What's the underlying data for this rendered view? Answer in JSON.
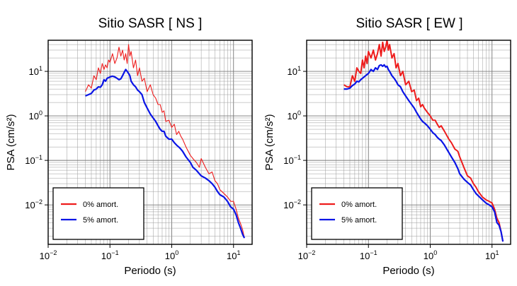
{
  "chart_data": [
    {
      "type": "line",
      "title": "Sitio SASR [ NS ]",
      "xlabel": "Periodo (s)",
      "ylabel": "PSA (cm/s²)",
      "x_scale": "log",
      "y_scale": "log",
      "xlim": [
        0.01,
        20
      ],
      "ylim": [
        0.0013,
        50
      ],
      "x_ticks": [
        {
          "value": 0.01,
          "base": "10",
          "exp": "−2"
        },
        {
          "value": 0.1,
          "base": "10",
          "exp": "−1"
        },
        {
          "value": 1,
          "base": "10",
          "exp": "0"
        },
        {
          "value": 10,
          "base": "10",
          "exp": "1"
        }
      ],
      "y_ticks": [
        {
          "value": 0.01,
          "base": "10",
          "exp": "−2"
        },
        {
          "value": 0.1,
          "base": "10",
          "exp": "−1"
        },
        {
          "value": 1,
          "base": "10",
          "exp": "0"
        },
        {
          "value": 10,
          "base": "10",
          "exp": "1"
        }
      ],
      "grid": true,
      "legend": "bottom-left",
      "series": [
        {
          "name": "0% amort.",
          "color": "#ee1c1c",
          "x": [
            0.04,
            0.045,
            0.05,
            0.055,
            0.06,
            0.065,
            0.07,
            0.075,
            0.08,
            0.085,
            0.09,
            0.095,
            0.1,
            0.11,
            0.12,
            0.13,
            0.14,
            0.15,
            0.16,
            0.17,
            0.18,
            0.19,
            0.2,
            0.21,
            0.22,
            0.24,
            0.26,
            0.28,
            0.3,
            0.33,
            0.36,
            0.4,
            0.45,
            0.5,
            0.55,
            0.6,
            0.65,
            0.7,
            0.75,
            0.8,
            0.9,
            1.0,
            1.1,
            1.2,
            1.3,
            1.4,
            1.5,
            1.7,
            2.0,
            2.2,
            2.5,
            2.8,
            3.0,
            3.5,
            4.0,
            4.5,
            5.0,
            5.5,
            6.0,
            7.0,
            8.0,
            9.0,
            10.0,
            11.0,
            12.0,
            13.0,
            14.0,
            15.0
          ],
          "y": [
            3.5,
            5.0,
            4.2,
            8.0,
            6.5,
            12.0,
            9.0,
            15.0,
            11.0,
            14.0,
            12.0,
            18.0,
            16.0,
            25.0,
            15.0,
            20.0,
            35.0,
            22.0,
            30.0,
            18.0,
            25.0,
            15.0,
            40.0,
            22.0,
            28.0,
            12.0,
            18.0,
            8.0,
            12.0,
            6.0,
            7.0,
            3.5,
            5.0,
            3.0,
            2.5,
            1.8,
            1.8,
            1.2,
            1.3,
            0.75,
            0.8,
            0.55,
            0.65,
            0.38,
            0.45,
            0.35,
            0.3,
            0.2,
            0.13,
            0.11,
            0.09,
            0.07,
            0.11,
            0.07,
            0.05,
            0.055,
            0.035,
            0.03,
            0.022,
            0.018,
            0.015,
            0.012,
            0.012,
            0.008,
            0.005,
            0.0038,
            0.0028,
            0.0018
          ]
        },
        {
          "name": "5% amort.",
          "color": "#0a14e6",
          "x": [
            0.04,
            0.045,
            0.05,
            0.055,
            0.06,
            0.065,
            0.07,
            0.075,
            0.08,
            0.085,
            0.09,
            0.095,
            0.1,
            0.11,
            0.12,
            0.13,
            0.14,
            0.15,
            0.16,
            0.17,
            0.18,
            0.19,
            0.2,
            0.21,
            0.22,
            0.24,
            0.26,
            0.28,
            0.3,
            0.33,
            0.36,
            0.4,
            0.45,
            0.5,
            0.55,
            0.6,
            0.65,
            0.7,
            0.75,
            0.8,
            0.9,
            1.0,
            1.1,
            1.2,
            1.3,
            1.4,
            1.5,
            1.7,
            2.0,
            2.2,
            2.5,
            2.8,
            3.0,
            3.5,
            4.0,
            4.5,
            5.0,
            5.5,
            6.0,
            7.0,
            8.0,
            9.0,
            10.0,
            11.0,
            12.0,
            13.0,
            14.0,
            15.0
          ],
          "y": [
            2.8,
            3.0,
            3.2,
            3.8,
            4.0,
            4.5,
            4.4,
            5.0,
            6.5,
            6.0,
            7.0,
            7.2,
            7.5,
            7.8,
            7.5,
            7.0,
            6.5,
            6.8,
            8.0,
            9.5,
            11.0,
            10.0,
            9.0,
            8.0,
            6.0,
            5.0,
            4.5,
            3.8,
            3.5,
            3.0,
            2.0,
            1.5,
            1.1,
            0.9,
            0.75,
            0.6,
            0.5,
            0.45,
            0.45,
            0.35,
            0.3,
            0.3,
            0.25,
            0.22,
            0.2,
            0.18,
            0.16,
            0.12,
            0.09,
            0.07,
            0.06,
            0.05,
            0.045,
            0.04,
            0.035,
            0.03,
            0.025,
            0.02,
            0.017,
            0.015,
            0.012,
            0.009,
            0.008,
            0.006,
            0.004,
            0.003,
            0.0022,
            0.0018
          ]
        }
      ]
    },
    {
      "type": "line",
      "title": "Sitio SASR [ EW ]",
      "xlabel": "Periodo (s)",
      "ylabel": "PSA (cm/s²)",
      "x_scale": "log",
      "y_scale": "log",
      "xlim": [
        0.01,
        20
      ],
      "ylim": [
        0.0013,
        50
      ],
      "x_ticks": [
        {
          "value": 0.01,
          "base": "10",
          "exp": "−2"
        },
        {
          "value": 0.1,
          "base": "10",
          "exp": "−1"
        },
        {
          "value": 1,
          "base": "10",
          "exp": "0"
        },
        {
          "value": 10,
          "base": "10",
          "exp": "1"
        }
      ],
      "y_ticks": [
        {
          "value": 0.01,
          "base": "10",
          "exp": "−2"
        },
        {
          "value": 0.1,
          "base": "10",
          "exp": "−1"
        },
        {
          "value": 1,
          "base": "10",
          "exp": "0"
        },
        {
          "value": 10,
          "base": "10",
          "exp": "1"
        }
      ],
      "grid": true,
      "legend": "bottom-left",
      "series": [
        {
          "name": "0% amort.",
          "color": "#ee1c1c",
          "x": [
            0.04,
            0.045,
            0.05,
            0.055,
            0.06,
            0.065,
            0.07,
            0.075,
            0.08,
            0.085,
            0.09,
            0.095,
            0.1,
            0.11,
            0.12,
            0.13,
            0.14,
            0.15,
            0.16,
            0.17,
            0.18,
            0.19,
            0.2,
            0.21,
            0.22,
            0.24,
            0.26,
            0.28,
            0.3,
            0.33,
            0.36,
            0.4,
            0.45,
            0.5,
            0.55,
            0.6,
            0.65,
            0.7,
            0.75,
            0.8,
            0.9,
            1.0,
            1.1,
            1.2,
            1.3,
            1.4,
            1.5,
            1.7,
            2.0,
            2.2,
            2.5,
            2.8,
            3.0,
            3.5,
            4.0,
            4.5,
            5.0,
            5.5,
            6.0,
            7.0,
            8.0,
            9.0,
            10.0,
            11.0,
            12.0,
            13.0,
            14.0,
            15.0
          ],
          "y": [
            5.0,
            4.5,
            4.5,
            8.0,
            6.0,
            12.0,
            10.0,
            9.0,
            18.0,
            12.0,
            22.0,
            15.0,
            28.0,
            20.0,
            30.0,
            18.0,
            25.0,
            40.0,
            22.0,
            45.0,
            28.0,
            35.0,
            50.0,
            30.0,
            40.0,
            20.0,
            25.0,
            12.0,
            15.0,
            8.0,
            10.0,
            5.0,
            6.0,
            3.5,
            3.8,
            2.2,
            2.5,
            1.6,
            1.8,
            1.5,
            1.2,
            1.0,
            0.8,
            0.8,
            0.65,
            0.55,
            0.6,
            0.45,
            0.3,
            0.25,
            0.18,
            0.16,
            0.12,
            0.07,
            0.045,
            0.04,
            0.03,
            0.025,
            0.02,
            0.015,
            0.013,
            0.012,
            0.011,
            0.008,
            0.005,
            0.004,
            0.0025,
            0.0015
          ]
        },
        {
          "name": "5% amort.",
          "color": "#0a14e6",
          "x": [
            0.04,
            0.045,
            0.05,
            0.055,
            0.06,
            0.065,
            0.07,
            0.075,
            0.08,
            0.085,
            0.09,
            0.095,
            0.1,
            0.11,
            0.12,
            0.13,
            0.14,
            0.15,
            0.16,
            0.17,
            0.18,
            0.19,
            0.2,
            0.21,
            0.22,
            0.24,
            0.26,
            0.28,
            0.3,
            0.33,
            0.36,
            0.4,
            0.45,
            0.5,
            0.55,
            0.6,
            0.65,
            0.7,
            0.75,
            0.8,
            0.9,
            1.0,
            1.1,
            1.2,
            1.3,
            1.4,
            1.5,
            1.7,
            2.0,
            2.2,
            2.5,
            2.8,
            3.0,
            3.5,
            4.0,
            4.5,
            5.0,
            5.5,
            6.0,
            7.0,
            8.0,
            9.0,
            10.0,
            11.0,
            12.0,
            13.0,
            14.0,
            15.0
          ],
          "y": [
            4.0,
            4.0,
            4.2,
            4.8,
            5.2,
            6.0,
            5.8,
            6.5,
            7.0,
            7.5,
            8.0,
            8.5,
            9.0,
            11.0,
            10.0,
            12.0,
            11.0,
            13.5,
            14.0,
            13.0,
            14.0,
            12.5,
            13.0,
            11.0,
            10.0,
            8.0,
            7.0,
            6.0,
            5.0,
            4.5,
            3.5,
            2.8,
            2.2,
            1.8,
            1.5,
            1.2,
            1.0,
            0.85,
            0.75,
            0.7,
            0.6,
            0.5,
            0.42,
            0.38,
            0.33,
            0.3,
            0.28,
            0.22,
            0.15,
            0.12,
            0.09,
            0.065,
            0.05,
            0.038,
            0.032,
            0.028,
            0.022,
            0.018,
            0.016,
            0.013,
            0.011,
            0.01,
            0.009,
            0.007,
            0.004,
            0.0035,
            0.0025,
            0.0015
          ]
        }
      ]
    }
  ]
}
